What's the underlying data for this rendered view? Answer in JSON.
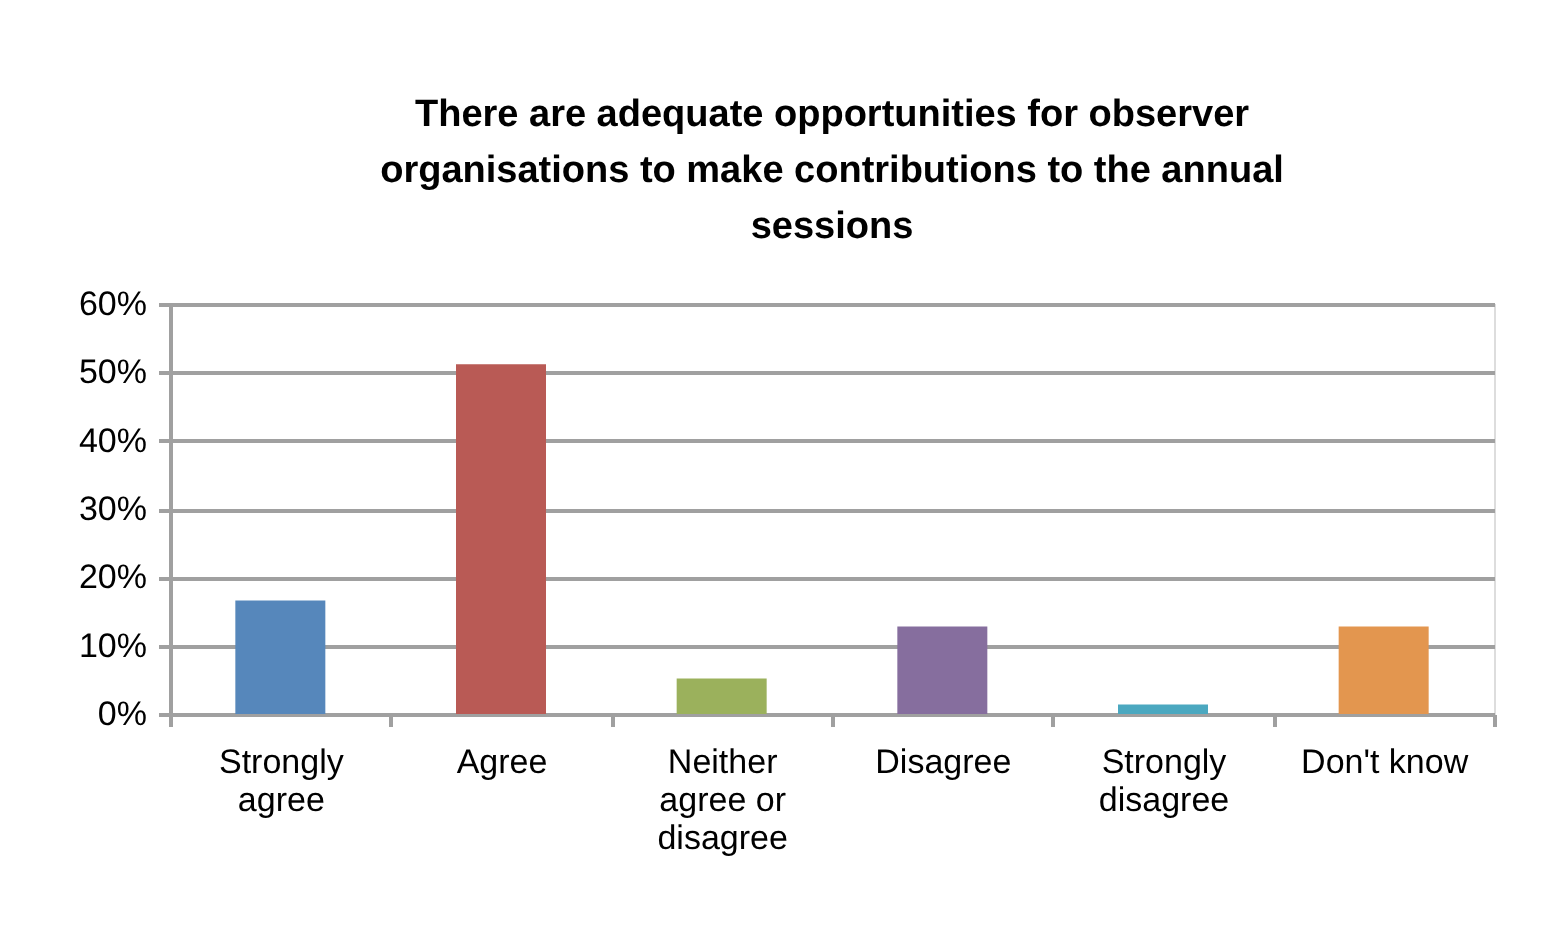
{
  "chart_data": {
    "type": "bar",
    "title": "There are adequate opportunities for observer organisations to make contributions to the annual sessions",
    "categories": [
      "Strongly agree",
      "Agree",
      "Neither agree or disagree",
      "Disagree",
      "Strongly disagree",
      "Don't know"
    ],
    "values": [
      16.6,
      51.2,
      5.2,
      12.8,
      1.4,
      12.8
    ],
    "colors": [
      "#5687bb",
      "#b95a55",
      "#9bb15c",
      "#866e9e",
      "#4ba8c0",
      "#e3964f"
    ],
    "ylim": [
      0,
      60
    ],
    "yticks": [
      {
        "value": 0,
        "label": "0%"
      },
      {
        "value": 10,
        "label": "10%"
      },
      {
        "value": 20,
        "label": "20%"
      },
      {
        "value": 30,
        "label": "30%"
      },
      {
        "value": 40,
        "label": "40%"
      },
      {
        "value": 50,
        "label": "50%"
      },
      {
        "value": 60,
        "label": "60%"
      }
    ],
    "grid": "y"
  }
}
